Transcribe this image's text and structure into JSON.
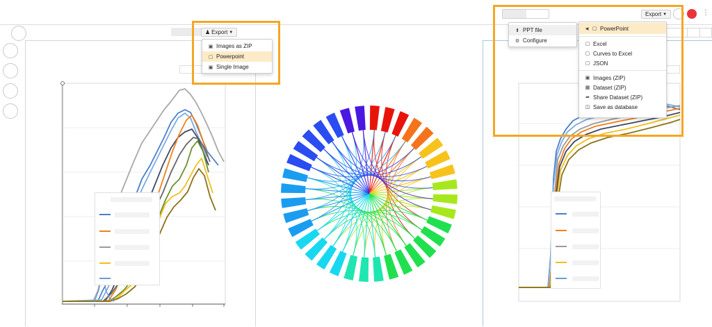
{
  "left_export": {
    "button_label": "Export",
    "menu": [
      {
        "label": "Images as ZIP",
        "icon": "image-icon"
      },
      {
        "label": "Powerpoint",
        "icon": "file-icon",
        "highlighted": true
      },
      {
        "label": "Single Image",
        "icon": "image-icon"
      }
    ]
  },
  "right_export": {
    "button_label": "Export",
    "submenu_left": [
      {
        "label": "PPT file",
        "icon": "upload-icon",
        "highlighted": true
      },
      {
        "label": "Configure",
        "icon": "gear-icon"
      }
    ],
    "submenu_right": [
      {
        "label": "PowerPoint",
        "icon": "file-icon",
        "highlighted": true
      },
      {
        "label": "Excel",
        "icon": "file-icon"
      },
      {
        "label": "Curves to Excel",
        "icon": "file-icon"
      },
      {
        "label": "JSON",
        "icon": "file-icon"
      },
      {
        "label": "Images (ZIP)",
        "icon": "image-icon"
      },
      {
        "label": "Dataset (ZIP)",
        "icon": "table-icon"
      },
      {
        "label": "Share Dataset (ZIP)",
        "icon": "share-icon"
      },
      {
        "label": "Save as database",
        "icon": "database-icon"
      }
    ]
  },
  "colors": {
    "highlight": "#f5a623",
    "menu_highlight": "#fdebc8",
    "status_dot": "#e8343b",
    "series": [
      "#4a7fc9",
      "#f07f1a",
      "#9a9a9a",
      "#f2bd1b",
      "#6c9bd6"
    ]
  }
}
